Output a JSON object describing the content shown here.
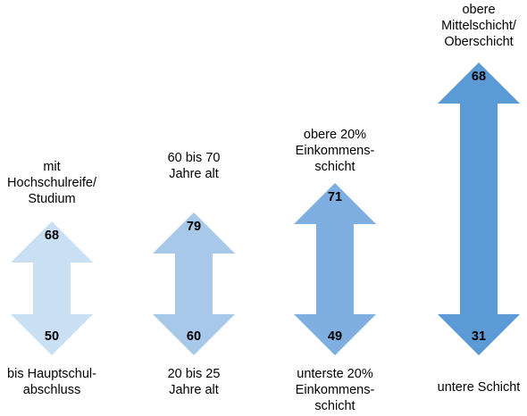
{
  "groups": [
    {
      "top_label": "mit\nHochschulreife/\nStudium",
      "bottom_label": "bis Hauptschul-\nabschluss",
      "top_value": "68",
      "bottom_value": "50",
      "color": "#c9dff3"
    },
    {
      "top_label": "60 bis 70\nJahre alt",
      "bottom_label": "20 bis 25\nJahre alt",
      "top_value": "79",
      "bottom_value": "60",
      "color": "#a8c8ea"
    },
    {
      "top_label": "obere 20%\nEinkommens-\nschicht",
      "bottom_label": "unterste 20%\nEinkommens-\nschicht",
      "top_value": "71",
      "bottom_value": "49",
      "color": "#7eafe0"
    },
    {
      "top_label": "obere\nMittelschicht/\nOberschicht",
      "bottom_label": "untere Schicht",
      "top_value": "68",
      "bottom_value": "31",
      "color": "#5c9ad6"
    }
  ]
}
